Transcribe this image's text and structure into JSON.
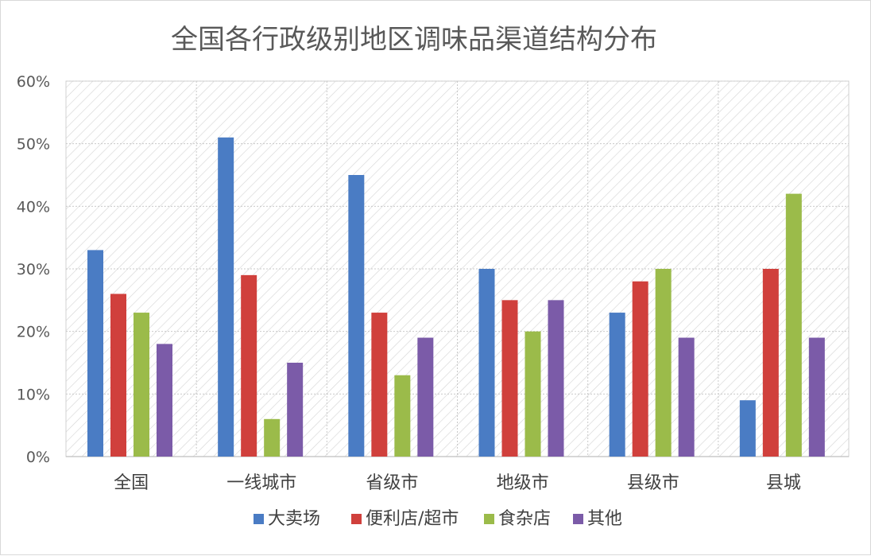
{
  "chart_data": {
    "type": "bar",
    "title": "全国各行政级别地区调味品渠道结构分布",
    "categories": [
      "全国",
      "一线城市",
      "省级市",
      "地级市",
      "县级市",
      "县城"
    ],
    "series": [
      {
        "name": "大卖场",
        "color": "#4a7cc4",
        "values": [
          33,
          51,
          45,
          30,
          23,
          9
        ]
      },
      {
        "name": "便利店/超市",
        "color": "#d0403c",
        "values": [
          26,
          29,
          23,
          25,
          28,
          30
        ]
      },
      {
        "name": "食杂店",
        "color": "#9bbb4a",
        "values": [
          23,
          6,
          13,
          20,
          30,
          42
        ]
      },
      {
        "name": "其他",
        "color": "#7b5ba8",
        "values": [
          18,
          15,
          19,
          25,
          19,
          19
        ]
      }
    ],
    "ylim": [
      0,
      60
    ],
    "yticks": [
      0,
      10,
      20,
      30,
      40,
      50,
      60
    ],
    "yticks_labels": [
      "0%",
      "10%",
      "20%",
      "30%",
      "40%",
      "50%",
      "60%"
    ],
    "grid": true,
    "legend_position": "bottom",
    "xlabel": "",
    "ylabel": ""
  }
}
